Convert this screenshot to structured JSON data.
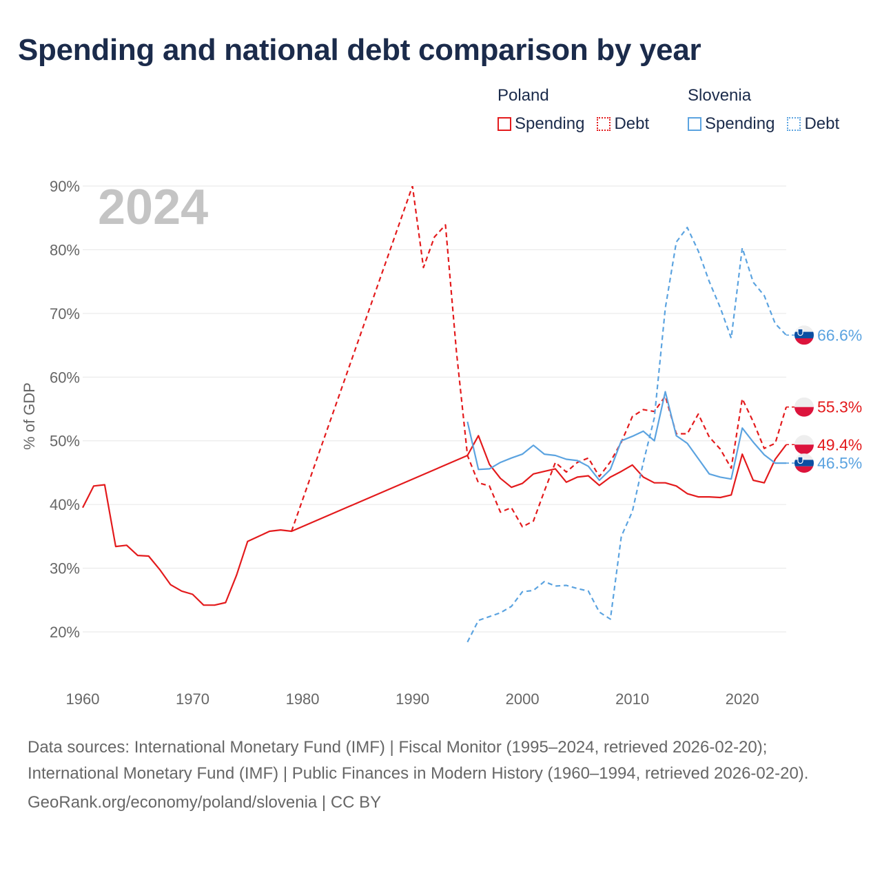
{
  "title": "Spending and national debt comparison by year",
  "legend": {
    "groups": [
      {
        "name": "Poland",
        "color": "#e31a1c",
        "items": [
          {
            "label": "Spending",
            "style": "solid"
          },
          {
            "label": "Debt",
            "style": "dashed"
          }
        ]
      },
      {
        "name": "Slovenia",
        "color": "#5ba3e0",
        "items": [
          {
            "label": "Spending",
            "style": "solid"
          },
          {
            "label": "Debt",
            "style": "dashed"
          }
        ]
      }
    ]
  },
  "footer": {
    "sources": "Data sources: International Monetary Fund (IMF) | Fiscal Monitor (1995–2024, retrieved 2026-02-20); International Monetary Fund (IMF) | Public Finances in Modern History (1960–1994, retrieved 2026-02-20).",
    "attribution": "GeoRank.org/economy/poland/slovenia | CC BY"
  },
  "chart_data": {
    "type": "line",
    "title": "Spending and national debt comparison by year",
    "year_label": "2024",
    "ylabel": "% of GDP",
    "xlabel": "",
    "xlim": [
      1960,
      2024
    ],
    "ylim": [
      10,
      90
    ],
    "x_ticks": [
      1960,
      1970,
      1980,
      1990,
      2000,
      2010,
      2020
    ],
    "x_tick_labels": [
      "1960",
      "1970",
      "1980",
      "1990",
      "2000",
      "2010",
      "2020"
    ],
    "y_ticks": [
      20,
      30,
      40,
      50,
      60,
      70,
      80,
      90
    ],
    "y_tick_labels": [
      "20%",
      "30%",
      "40%",
      "50%",
      "60%",
      "70%",
      "80%",
      "90%"
    ],
    "grid": true,
    "series": [
      {
        "name": "Poland Spending",
        "country": "Poland",
        "metric": "Spending",
        "color": "#e31a1c",
        "style": "solid",
        "flag": "poland",
        "end_label": "49.4%",
        "x": [
          1960,
          1961,
          1962,
          1963,
          1964,
          1965,
          1966,
          1967,
          1968,
          1969,
          1970,
          1971,
          1972,
          1973,
          1974,
          1975,
          1976,
          1977,
          1978,
          1979,
          1995,
          1996,
          1997,
          1998,
          1999,
          2000,
          2001,
          2002,
          2003,
          2004,
          2005,
          2006,
          2007,
          2008,
          2009,
          2010,
          2011,
          2012,
          2013,
          2014,
          2015,
          2016,
          2017,
          2018,
          2019,
          2020,
          2021,
          2022,
          2023,
          2024
        ],
        "values": [
          39.5,
          42.9,
          43.1,
          33.4,
          33.6,
          32.0,
          31.9,
          29.8,
          27.4,
          26.4,
          25.9,
          24.2,
          24.2,
          24.6,
          28.9,
          34.2,
          35.0,
          35.8,
          36.0,
          35.8,
          47.7,
          50.8,
          46.3,
          44.1,
          42.7,
          43.3,
          44.8,
          45.2,
          45.6,
          43.5,
          44.3,
          44.5,
          43.0,
          44.3,
          45.2,
          46.2,
          44.3,
          43.4,
          43.4,
          42.9,
          41.7,
          41.2,
          41.2,
          41.1,
          41.5,
          47.9,
          43.8,
          43.4,
          47.1,
          49.4
        ]
      },
      {
        "name": "Poland Debt",
        "country": "Poland",
        "metric": "Debt",
        "color": "#e31a1c",
        "style": "dashed",
        "flag": "poland",
        "end_label": "55.3%",
        "x": [
          1979,
          1990,
          1991,
          1992,
          1993,
          1994,
          1995,
          1996,
          1997,
          1998,
          1999,
          2000,
          2001,
          2002,
          2003,
          2004,
          2005,
          2006,
          2007,
          2008,
          2009,
          2010,
          2011,
          2012,
          2013,
          2014,
          2015,
          2016,
          2017,
          2018,
          2019,
          2020,
          2021,
          2022,
          2023,
          2024
        ],
        "values": [
          35.8,
          90.0,
          77.2,
          82.0,
          83.9,
          64.0,
          47.7,
          43.4,
          42.9,
          38.8,
          39.5,
          36.5,
          37.4,
          42.1,
          46.6,
          45.1,
          46.6,
          47.3,
          44.4,
          46.7,
          49.8,
          53.8,
          54.9,
          54.6,
          57.0,
          51.1,
          51.1,
          54.2,
          50.6,
          48.7,
          45.7,
          56.6,
          53.0,
          48.8,
          49.6,
          55.3
        ]
      },
      {
        "name": "Slovenia Spending",
        "country": "Slovenia",
        "metric": "Spending",
        "color": "#5ba3e0",
        "style": "solid",
        "flag": "slovenia",
        "end_label": "46.5%",
        "x": [
          1995,
          1996,
          1997,
          1998,
          1999,
          2000,
          2001,
          2002,
          2003,
          2004,
          2005,
          2006,
          2007,
          2008,
          2009,
          2010,
          2011,
          2012,
          2013,
          2014,
          2015,
          2016,
          2017,
          2018,
          2019,
          2020,
          2021,
          2022,
          2023,
          2024
        ],
        "values": [
          53.0,
          45.5,
          45.6,
          46.6,
          47.3,
          47.9,
          49.3,
          47.9,
          47.7,
          47.1,
          46.9,
          46.0,
          43.8,
          45.5,
          50.0,
          50.7,
          51.5,
          50.0,
          57.7,
          50.8,
          49.6,
          47.2,
          44.8,
          44.3,
          44.0,
          52.0,
          49.8,
          47.8,
          46.5,
          46.5
        ]
      },
      {
        "name": "Slovenia Debt",
        "country": "Slovenia",
        "metric": "Debt",
        "color": "#5ba3e0",
        "style": "dashed",
        "flag": "slovenia",
        "end_label": "66.6%",
        "x": [
          1995,
          1996,
          1997,
          1998,
          1999,
          2000,
          2001,
          2002,
          2003,
          2004,
          2005,
          2006,
          2007,
          2008,
          2009,
          2010,
          2011,
          2012,
          2013,
          2014,
          2015,
          2016,
          2017,
          2018,
          2019,
          2020,
          2021,
          2022,
          2023,
          2024
        ],
        "values": [
          18.4,
          21.8,
          22.4,
          23.0,
          24.0,
          26.3,
          26.5,
          27.9,
          27.2,
          27.3,
          26.8,
          26.4,
          23.1,
          22.0,
          35.0,
          38.9,
          46.6,
          53.6,
          70.8,
          81.2,
          83.5,
          79.8,
          75.0,
          70.9,
          66.1,
          80.3,
          74.9,
          72.8,
          68.4,
          66.6
        ]
      }
    ]
  }
}
